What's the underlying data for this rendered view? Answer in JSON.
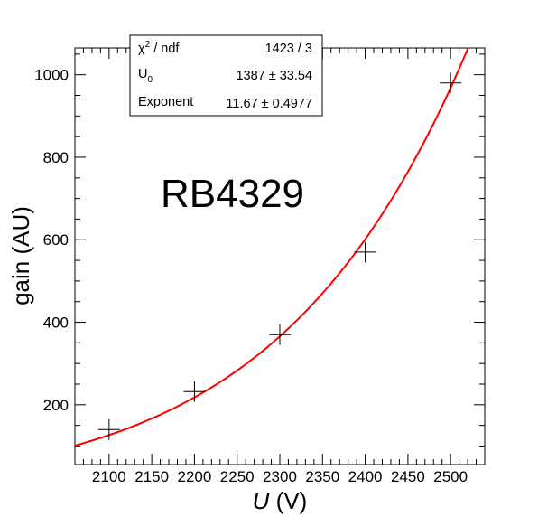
{
  "chart_data": {
    "type": "scatter",
    "title": "",
    "xlabel_var": "U",
    "xlabel_unit": "(V)",
    "ylabel": "gain (AU)",
    "xlim": [
      2060,
      2540
    ],
    "ylim": [
      55,
      1065
    ],
    "x_ticks": [
      2100,
      2150,
      2200,
      2250,
      2300,
      2350,
      2400,
      2450,
      2500
    ],
    "y_ticks": [
      200,
      400,
      600,
      800,
      1000
    ],
    "grid": false,
    "annotation": "RB4329",
    "series": [
      {
        "type": "scatter",
        "marker": "cross",
        "color": "#000000",
        "x": [
          2100,
          2200,
          2300,
          2400,
          2500
        ],
        "y": [
          140,
          232,
          370,
          570,
          980
        ],
        "yerr": [
          25,
          25,
          25,
          25,
          25
        ]
      },
      {
        "type": "fit",
        "color": "#ff0000",
        "model": "gain = (U / U0)^Exponent",
        "params": {
          "U0": 1387,
          "Exponent": 11.67
        }
      }
    ],
    "stats_box": {
      "rows": [
        {
          "label": "χ",
          "sup": "2",
          "label_rest": " / ndf",
          "value": "1423 / 3"
        },
        {
          "label": "U",
          "sub": "0",
          "label_rest": "",
          "value": "1387 ± 33.54"
        },
        {
          "label": "Exponent",
          "label_rest": "",
          "value": "11.67 ± 0.4977"
        }
      ]
    }
  }
}
